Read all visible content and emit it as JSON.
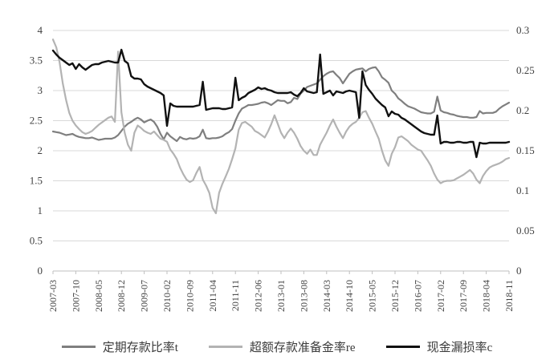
{
  "chart_data": {
    "type": "line",
    "title": "",
    "x_frequency": "monthly",
    "x_range": [
      "2007-03",
      "2018-11"
    ],
    "x_tick_labels": [
      "2007-03",
      "2007-10",
      "2008-05",
      "2008-12",
      "2009-07",
      "2010-02",
      "2010-09",
      "2011-04",
      "2011-11",
      "2012-06",
      "2013-01",
      "2013-08",
      "2014-03",
      "2014-10",
      "2015-05",
      "2015-12",
      "2016-07",
      "2017-02",
      "2017-09",
      "2018-04",
      "2018-11"
    ],
    "x_tick_step_months": 7,
    "grid": true,
    "gridline_color": "#d9d9d9",
    "axis_line_color": "#bfbfbf",
    "axis_text_color": "#404040",
    "legend_position": "bottom",
    "left_axis": {
      "min": 0,
      "max": 4,
      "ticks": [
        "4",
        "3.5",
        "3",
        "2.5",
        "2",
        "1.5",
        "1",
        "0.5",
        "0"
      ]
    },
    "right_axis": {
      "min": 0,
      "max": 0.3,
      "ticks": [
        "0.3",
        "0.25",
        "0.2",
        "0.15",
        "0.1",
        "0.05",
        "0"
      ]
    },
    "series": [
      {
        "name": "定期存款比率t",
        "axis": "left",
        "color": "#7f7f7f",
        "values": [
          2.32,
          2.31,
          2.3,
          2.28,
          2.26,
          2.27,
          2.28,
          2.25,
          2.23,
          2.22,
          2.21,
          2.21,
          2.22,
          2.2,
          2.18,
          2.19,
          2.2,
          2.2,
          2.2,
          2.22,
          2.26,
          2.33,
          2.4,
          2.45,
          2.48,
          2.52,
          2.55,
          2.52,
          2.47,
          2.5,
          2.52,
          2.48,
          2.4,
          2.28,
          2.19,
          2.3,
          2.24,
          2.2,
          2.16,
          2.23,
          2.2,
          2.19,
          2.21,
          2.2,
          2.21,
          2.24,
          2.35,
          2.21,
          2.2,
          2.21,
          2.21,
          2.22,
          2.24,
          2.28,
          2.31,
          2.36,
          2.5,
          2.62,
          2.7,
          2.73,
          2.76,
          2.76,
          2.77,
          2.78,
          2.8,
          2.81,
          2.79,
          2.76,
          2.8,
          2.84,
          2.83,
          2.83,
          2.79,
          2.81,
          2.88,
          2.86,
          2.95,
          3.0,
          3.06,
          3.08,
          3.1,
          3.12,
          3.18,
          3.24,
          3.28,
          3.31,
          3.32,
          3.26,
          3.21,
          3.12,
          3.2,
          3.28,
          3.32,
          3.35,
          3.36,
          3.37,
          3.32,
          3.36,
          3.38,
          3.39,
          3.32,
          3.22,
          3.18,
          3.13,
          3.0,
          2.95,
          2.87,
          2.83,
          2.78,
          2.74,
          2.72,
          2.7,
          2.67,
          2.64,
          2.63,
          2.62,
          2.62,
          2.65,
          2.9,
          2.67,
          2.64,
          2.63,
          2.61,
          2.6,
          2.58,
          2.57,
          2.56,
          2.56,
          2.55,
          2.55,
          2.56,
          2.66,
          2.62,
          2.63,
          2.63,
          2.63,
          2.65,
          2.7,
          2.74,
          2.77,
          2.8
        ]
      },
      {
        "name": "超额存款准备金率re",
        "axis": "left",
        "color": "#b3b3b3",
        "values": [
          3.85,
          3.72,
          3.48,
          3.12,
          2.85,
          2.63,
          2.5,
          2.42,
          2.36,
          2.31,
          2.28,
          2.3,
          2.33,
          2.38,
          2.43,
          2.47,
          2.51,
          2.55,
          2.57,
          2.48,
          3.65,
          2.64,
          2.3,
          2.1,
          2.0,
          2.3,
          2.42,
          2.38,
          2.33,
          2.3,
          2.28,
          2.32,
          2.26,
          2.2,
          2.18,
          2.15,
          2.02,
          1.95,
          1.86,
          1.72,
          1.61,
          1.52,
          1.48,
          1.51,
          1.63,
          1.73,
          1.52,
          1.42,
          1.3,
          1.05,
          0.96,
          1.3,
          1.45,
          1.57,
          1.7,
          1.86,
          2.04,
          2.35,
          2.46,
          2.48,
          2.44,
          2.4,
          2.33,
          2.3,
          2.26,
          2.22,
          2.32,
          2.44,
          2.59,
          2.45,
          2.3,
          2.21,
          2.3,
          2.37,
          2.3,
          2.2,
          2.08,
          2.0,
          1.95,
          2.02,
          1.93,
          1.93,
          2.1,
          2.2,
          2.3,
          2.42,
          2.52,
          2.4,
          2.3,
          2.21,
          2.32,
          2.4,
          2.45,
          2.48,
          2.55,
          2.64,
          2.66,
          2.55,
          2.45,
          2.32,
          2.2,
          2.0,
          1.84,
          1.75,
          1.95,
          2.06,
          2.22,
          2.24,
          2.2,
          2.16,
          2.1,
          2.06,
          2.02,
          2.0,
          1.92,
          1.84,
          1.75,
          1.62,
          1.52,
          1.46,
          1.49,
          1.5,
          1.5,
          1.51,
          1.54,
          1.57,
          1.6,
          1.64,
          1.68,
          1.62,
          1.52,
          1.46,
          1.58,
          1.66,
          1.72,
          1.75,
          1.77,
          1.79,
          1.82,
          1.86,
          1.88
        ]
      },
      {
        "name": "现金漏损率c",
        "axis": "right",
        "color": "#111111",
        "values": [
          0.275,
          0.27,
          0.266,
          0.263,
          0.26,
          0.257,
          0.259,
          0.252,
          0.258,
          0.254,
          0.251,
          0.254,
          0.257,
          0.258,
          0.258,
          0.26,
          0.261,
          0.262,
          0.261,
          0.26,
          0.26,
          0.276,
          0.262,
          0.259,
          0.243,
          0.24,
          0.24,
          0.239,
          0.233,
          0.23,
          0.228,
          0.226,
          0.224,
          0.222,
          0.219,
          0.181,
          0.209,
          0.206,
          0.205,
          0.205,
          0.205,
          0.205,
          0.205,
          0.205,
          0.206,
          0.207,
          0.236,
          0.201,
          0.202,
          0.203,
          0.203,
          0.203,
          0.202,
          0.202,
          0.203,
          0.204,
          0.241,
          0.213,
          0.216,
          0.218,
          0.222,
          0.224,
          0.226,
          0.229,
          0.227,
          0.228,
          0.226,
          0.225,
          0.223,
          0.222,
          0.222,
          0.222,
          0.222,
          0.223,
          0.22,
          0.218,
          0.222,
          0.228,
          0.224,
          0.223,
          0.222,
          0.223,
          0.27,
          0.221,
          0.223,
          0.225,
          0.219,
          0.224,
          0.223,
          0.222,
          0.224,
          0.225,
          0.224,
          0.223,
          0.191,
          0.249,
          0.232,
          0.226,
          0.221,
          0.215,
          0.211,
          0.207,
          0.204,
          0.193,
          0.199,
          0.196,
          0.195,
          0.191,
          0.189,
          0.186,
          0.183,
          0.18,
          0.177,
          0.174,
          0.172,
          0.171,
          0.17,
          0.17,
          0.194,
          0.159,
          0.161,
          0.161,
          0.16,
          0.16,
          0.161,
          0.161,
          0.16,
          0.16,
          0.161,
          0.161,
          0.142,
          0.16,
          0.159,
          0.159,
          0.16,
          0.16,
          0.16,
          0.16,
          0.16,
          0.16,
          0.161
        ]
      }
    ]
  },
  "legend": {
    "items": [
      {
        "label": "定期存款比率t"
      },
      {
        "label": "超额存款准备金率re"
      },
      {
        "label": "现金漏损率c"
      }
    ]
  }
}
